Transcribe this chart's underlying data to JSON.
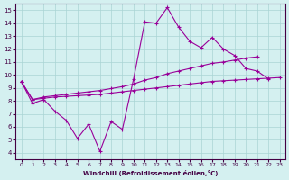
{
  "xlabel": "Windchill (Refroidissement éolien,°C)",
  "background_color": "#d4f0f0",
  "grid_color": "#aad4d4",
  "line_color": "#990099",
  "x_data": [
    0,
    1,
    2,
    3,
    4,
    5,
    6,
    7,
    8,
    9,
    10,
    11,
    12,
    13,
    14,
    15,
    16,
    17,
    18,
    19,
    20,
    21,
    22,
    23
  ],
  "line1_y": [
    9.5,
    7.8,
    8.1,
    7.2,
    6.5,
    5.1,
    6.2,
    4.1,
    6.4,
    5.8,
    9.7,
    14.1,
    14.0,
    15.2,
    13.7,
    12.6,
    12.1,
    12.9,
    12.0,
    11.5,
    10.5,
    10.3,
    9.7,
    null
  ],
  "line2_y": [
    9.5,
    8.1,
    8.3,
    8.4,
    8.5,
    8.6,
    8.7,
    8.8,
    8.95,
    9.1,
    9.3,
    9.6,
    9.8,
    10.1,
    10.3,
    10.5,
    10.7,
    10.9,
    11.0,
    11.15,
    11.3,
    11.4,
    null,
    null
  ],
  "line3_y": [
    9.5,
    8.1,
    8.2,
    8.3,
    8.35,
    8.4,
    8.45,
    8.5,
    8.6,
    8.7,
    8.8,
    8.9,
    9.0,
    9.1,
    9.2,
    9.3,
    9.4,
    9.5,
    9.55,
    9.6,
    9.65,
    9.7,
    9.75,
    9.8
  ],
  "xlim": [
    -0.5,
    23.5
  ],
  "ylim": [
    3.5,
    15.5
  ],
  "xticks": [
    0,
    1,
    2,
    3,
    4,
    5,
    6,
    7,
    8,
    9,
    10,
    11,
    12,
    13,
    14,
    15,
    16,
    17,
    18,
    19,
    20,
    21,
    22,
    23
  ],
  "yticks": [
    4,
    5,
    6,
    7,
    8,
    9,
    10,
    11,
    12,
    13,
    14,
    15
  ]
}
